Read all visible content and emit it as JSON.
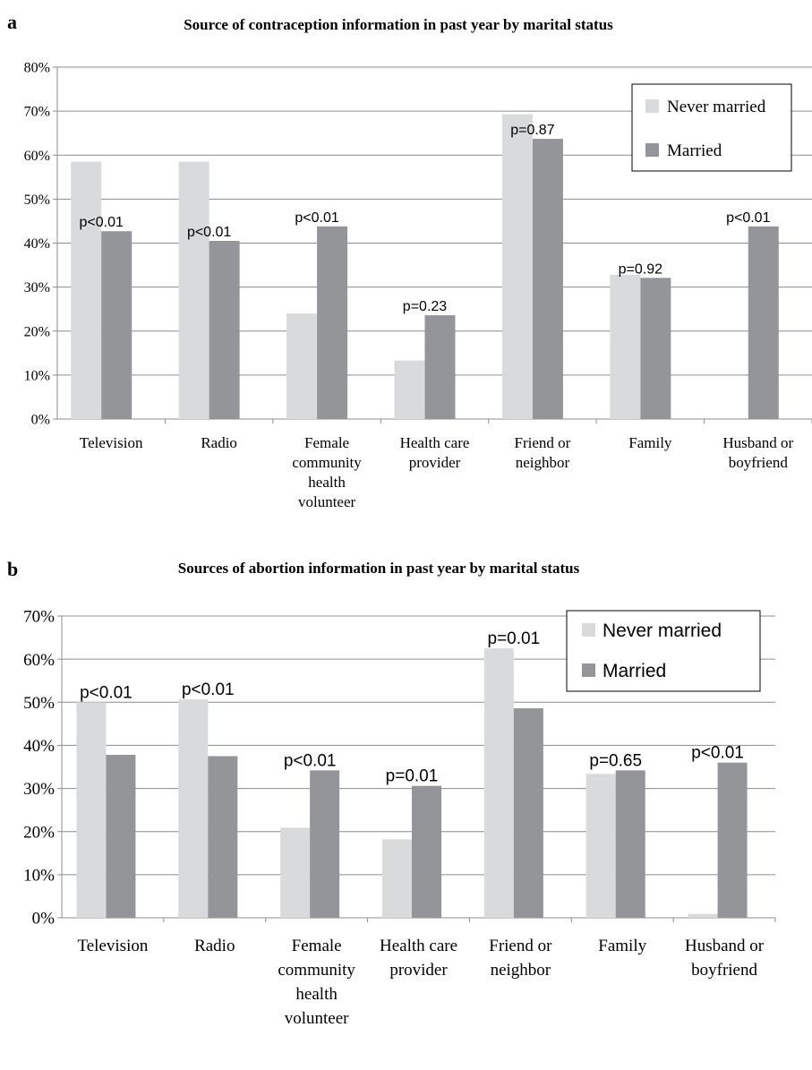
{
  "chart_data": [
    {
      "panel_letter": "a",
      "type": "bar",
      "title": "Source of contraception information in past year by marital status",
      "categories": [
        "Television",
        "Radio",
        "Female community health volunteer",
        "Health care provider",
        "Friend or neighbor",
        "Family",
        "Husband or boyfriend"
      ],
      "category_label_lines": [
        [
          "Television"
        ],
        [
          "Radio"
        ],
        [
          "Female",
          "community",
          "health",
          "volunteer"
        ],
        [
          "Health care",
          "provider"
        ],
        [
          "Friend or",
          "neighbor"
        ],
        [
          "Family"
        ],
        [
          "Husband or",
          "boyfriend"
        ]
      ],
      "series": [
        {
          "name": "Never married",
          "color": "#d9dadc",
          "values": [
            58.5,
            58.5,
            24,
            13.3,
            69.3,
            32.8,
            0
          ]
        },
        {
          "name": "Married",
          "color": "#939598",
          "values": [
            42.7,
            40.5,
            43.8,
            23.6,
            63.7,
            32.1,
            43.8
          ]
        }
      ],
      "p_values": [
        "p<0.01",
        "p<0.01",
        "p<0.01",
        "p=0.23",
        "p=0.87",
        "p=0.92",
        "p<0.01"
      ],
      "ylim": [
        0,
        80
      ],
      "ytick_step": 10,
      "ytick_labels": [
        "0%",
        "10%",
        "20%",
        "30%",
        "40%",
        "50%",
        "60%",
        "70%",
        "80%"
      ],
      "grid": true,
      "legend_position": "top-right"
    },
    {
      "panel_letter": "b",
      "type": "bar",
      "title": "Sources of abortion information in past year by marital status",
      "categories": [
        "Television",
        "Radio",
        "Female community health volunteer",
        "Health care provider",
        "Friend or neighbor",
        "Family",
        "Husband or boyfriend"
      ],
      "category_label_lines": [
        [
          "Television"
        ],
        [
          "Radio"
        ],
        [
          "Female",
          "community",
          "health",
          "volunteer"
        ],
        [
          "Health care",
          "provider"
        ],
        [
          "Friend or",
          "neighbor"
        ],
        [
          "Family"
        ],
        [
          "Husband or",
          "boyfriend"
        ]
      ],
      "series": [
        {
          "name": "Never married",
          "color": "#d9dadc",
          "values": [
            50.0,
            50.7,
            20.9,
            18.2,
            62.5,
            33.4,
            0.9
          ]
        },
        {
          "name": "Married",
          "color": "#939598",
          "values": [
            37.8,
            37.5,
            34.2,
            30.6,
            48.6,
            34.2,
            36.0
          ]
        }
      ],
      "p_values": [
        "p<0.01",
        "p<0.01",
        "p<0.01",
        "p=0.01",
        "p=0.01",
        "p=0.65",
        "p<0.01"
      ],
      "ylim": [
        0,
        70
      ],
      "ytick_step": 10,
      "ytick_labels": [
        "0%",
        "10%",
        "20%",
        "30%",
        "40%",
        "50%",
        "60%",
        "70%"
      ],
      "grid": true,
      "legend_position": "top-right"
    }
  ]
}
